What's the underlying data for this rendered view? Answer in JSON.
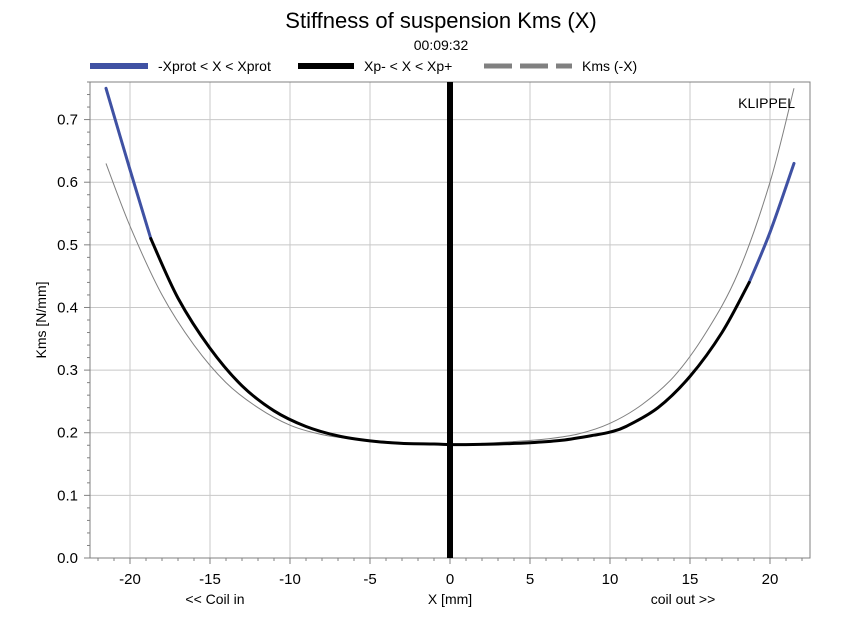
{
  "colors": {
    "protected_range": "#3f51a3",
    "peak_range": "#000000",
    "mirrored": "#808080",
    "grid": "#c8c8c8",
    "axis": "#808080"
  },
  "chart_data": {
    "type": "line",
    "title": "Stiffness of suspension Kms (X)",
    "subtitle": "00:09:32",
    "xlabel": "X [mm]",
    "ylabel": "Kms [N/mm]",
    "xlabel_left": "<< Coil in",
    "xlabel_right": "coil out >>",
    "brand": "KLIPPEL",
    "xlim": [
      -22.5,
      22.5
    ],
    "ylim": [
      0.0,
      0.76
    ],
    "x_ticks": [
      -20,
      -15,
      -10,
      -5,
      0,
      5,
      10,
      15,
      20
    ],
    "x_tick_labels": [
      "-20",
      "-15",
      "-10",
      "-5",
      "0",
      "5",
      "10",
      "15",
      "20"
    ],
    "y_ticks": [
      0.0,
      0.1,
      0.2,
      0.3,
      0.4,
      0.5,
      0.6,
      0.7
    ],
    "y_tick_labels": [
      "0.0",
      "0.1",
      "0.2",
      "0.3",
      "0.4",
      "0.5",
      "0.6",
      "0.7"
    ],
    "grid": true,
    "legend_position": "top",
    "vertical_marker_x": 0,
    "series": [
      {
        "name": "-Xprot < X < Xprot",
        "role": "protected_range",
        "x": [
          -21.5,
          -20.0,
          -18.7,
          18.7,
          20.0,
          21.5
        ],
        "y": [
          0.75,
          0.62,
          0.51,
          0.44,
          0.52,
          0.63
        ]
      },
      {
        "name": "Xp- < X < Xp+",
        "role": "peak_range",
        "x": [
          -18.7,
          -17,
          -15,
          -13,
          -11,
          -9,
          -7,
          -5,
          -3,
          -1,
          0,
          1,
          3,
          5,
          7,
          9,
          10,
          11,
          13,
          15,
          17,
          18.7
        ],
        "y": [
          0.51,
          0.415,
          0.335,
          0.275,
          0.235,
          0.21,
          0.195,
          0.187,
          0.183,
          0.182,
          0.181,
          0.181,
          0.182,
          0.184,
          0.188,
          0.196,
          0.201,
          0.21,
          0.24,
          0.29,
          0.36,
          0.44
        ]
      },
      {
        "name": "Kms (-X)",
        "role": "mirrored",
        "x": [
          -21.5,
          -20,
          -18,
          -16,
          -14,
          -12,
          -10,
          -8,
          -6,
          -4,
          -2,
          0,
          2,
          4,
          6,
          8,
          10,
          12,
          14,
          16,
          18,
          20,
          21.5
        ],
        "y": [
          0.63,
          0.53,
          0.42,
          0.34,
          0.28,
          0.24,
          0.212,
          0.197,
          0.19,
          0.186,
          0.183,
          0.181,
          0.183,
          0.186,
          0.19,
          0.198,
          0.215,
          0.245,
          0.29,
          0.36,
          0.455,
          0.6,
          0.75
        ]
      }
    ]
  }
}
